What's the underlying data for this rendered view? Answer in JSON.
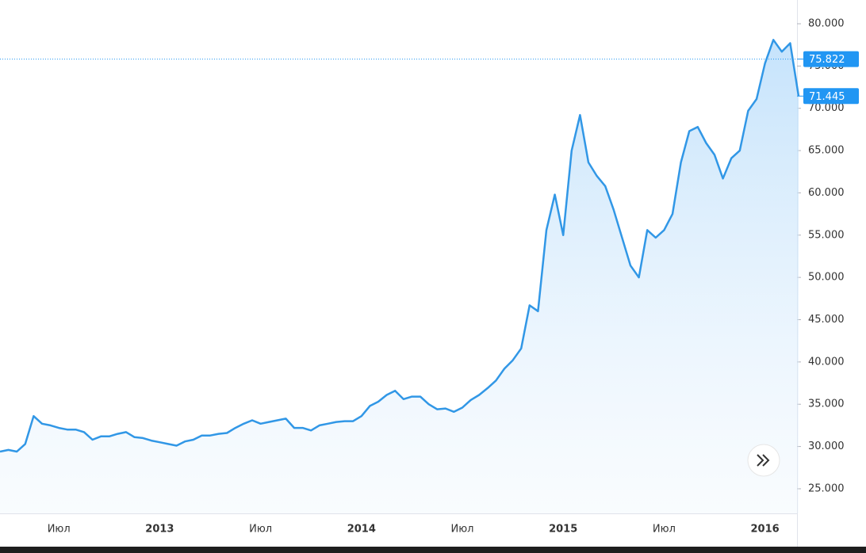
{
  "chart_data": {
    "type": "line",
    "categories": [
      null,
      null,
      null,
      null,
      null,
      null,
      null,
      "Июл",
      null,
      null,
      null,
      null,
      null,
      null,
      null,
      null,
      null,
      null,
      null,
      "2013",
      null,
      null,
      null,
      null,
      null,
      null,
      null,
      null,
      null,
      null,
      null,
      "Июл",
      null,
      null,
      null,
      null,
      null,
      null,
      null,
      null,
      null,
      null,
      null,
      "2014",
      null,
      null,
      null,
      null,
      null,
      null,
      null,
      null,
      null,
      null,
      null,
      "Июл",
      null,
      null,
      null,
      null,
      null,
      null,
      null,
      null,
      null,
      null,
      null,
      "2015",
      null,
      null,
      null,
      null,
      null,
      null,
      null,
      null,
      null,
      null,
      null,
      "Июл",
      null,
      null,
      null,
      null,
      null,
      null,
      null,
      null,
      null,
      null,
      null,
      "2016",
      null,
      null,
      null,
      null
    ],
    "values": [
      29.4,
      29.6,
      29.4,
      30.3,
      33.6,
      32.7,
      32.5,
      32.2,
      32.0,
      32.0,
      31.7,
      30.8,
      31.2,
      31.2,
      31.5,
      31.7,
      31.1,
      31.0,
      30.7,
      30.5,
      30.3,
      30.1,
      30.6,
      30.8,
      31.3,
      31.3,
      31.5,
      31.6,
      32.2,
      32.7,
      33.1,
      32.7,
      32.9,
      33.1,
      33.3,
      32.2,
      32.2,
      31.9,
      32.5,
      32.7,
      32.9,
      33.0,
      33.0,
      33.6,
      34.8,
      35.3,
      36.1,
      36.6,
      35.6,
      35.9,
      35.9,
      35.0,
      34.4,
      34.5,
      34.1,
      34.6,
      35.5,
      36.1,
      36.9,
      37.8,
      39.2,
      40.2,
      41.6,
      46.7,
      46.0,
      55.6,
      59.8,
      55.0,
      65.0,
      69.2,
      63.6,
      62.0,
      60.8,
      58.0,
      54.7,
      51.4,
      50.0,
      55.6,
      54.7,
      55.6,
      57.5,
      63.6,
      67.3,
      67.8,
      65.9,
      64.5,
      61.7,
      64.1,
      65.0,
      69.7,
      71.1,
      75.3,
      78.1,
      76.7,
      77.7,
      71.445
    ],
    "color": "#3197e6",
    "ylim": [
      22.09,
      82.81
    ],
    "yticks": [
      {
        "value": 25,
        "label": "25.000"
      },
      {
        "value": 30,
        "label": "30.000"
      },
      {
        "value": 35,
        "label": "35.000"
      },
      {
        "value": 40,
        "label": "40.000"
      },
      {
        "value": 45,
        "label": "45.000"
      },
      {
        "value": 50,
        "label": "50.000"
      },
      {
        "value": 55,
        "label": "55.000"
      },
      {
        "value": 60,
        "label": "60.000"
      },
      {
        "value": 65,
        "label": "65.000"
      },
      {
        "value": 70,
        "label": "70.000"
      },
      {
        "value": 75,
        "label": "75.000"
      },
      {
        "value": 80,
        "label": "80.000"
      }
    ],
    "price_labels": [
      {
        "value": 75.822,
        "label": "75.822"
      },
      {
        "value": 71.445,
        "label": "71.445"
      }
    ]
  }
}
